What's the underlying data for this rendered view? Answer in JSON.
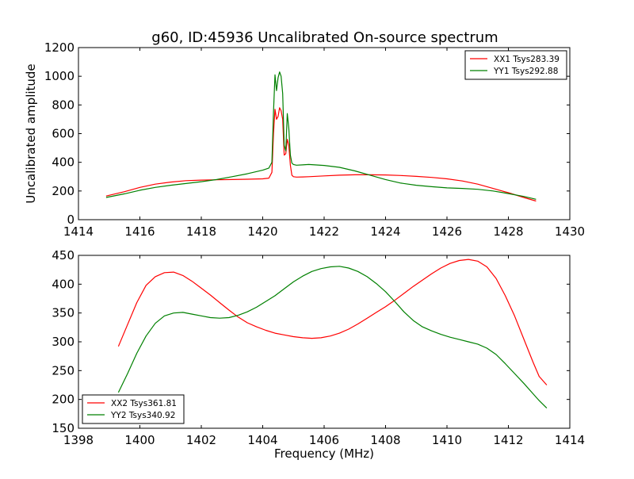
{
  "title": "g60, ID:45936 Uncalibrated On-source spectrum",
  "chart_data": [
    {
      "type": "line",
      "ylabel": "Uncalibrated amplitude",
      "xlabel": "",
      "xlim": [
        1414,
        1430
      ],
      "ylim": [
        0,
        1200
      ],
      "xticks": [
        1414,
        1416,
        1418,
        1420,
        1422,
        1424,
        1426,
        1428,
        1430
      ],
      "yticks": [
        0,
        200,
        400,
        600,
        800,
        1000,
        1200
      ],
      "legend_position": "top-right",
      "series": [
        {
          "name": "XX1 Tsys283.39",
          "color": "#ff0000",
          "x": [
            1414.9,
            1415.5,
            1416.0,
            1416.5,
            1417.0,
            1417.5,
            1418.0,
            1418.5,
            1419.0,
            1419.5,
            1420.0,
            1420.2,
            1420.3,
            1420.35,
            1420.4,
            1420.45,
            1420.5,
            1420.55,
            1420.6,
            1420.65,
            1420.7,
            1420.75,
            1420.8,
            1420.85,
            1420.9,
            1420.95,
            1421.0,
            1421.1,
            1421.3,
            1421.5,
            1422.0,
            1422.5,
            1423.0,
            1423.5,
            1424.0,
            1424.5,
            1425.0,
            1425.5,
            1426.0,
            1426.5,
            1427.0,
            1427.5,
            1428.0,
            1428.5,
            1428.9
          ],
          "y": [
            165,
            195,
            225,
            248,
            262,
            272,
            276,
            278,
            280,
            282,
            285,
            290,
            330,
            600,
            770,
            700,
            720,
            780,
            760,
            700,
            450,
            460,
            560,
            520,
            380,
            310,
            300,
            297,
            298,
            300,
            305,
            310,
            313,
            313,
            312,
            308,
            302,
            295,
            285,
            270,
            248,
            218,
            188,
            155,
            130
          ]
        },
        {
          "name": "YY1 Tsys292.88",
          "color": "#008000",
          "x": [
            1414.9,
            1415.5,
            1416.0,
            1416.5,
            1417.0,
            1417.5,
            1418.0,
            1418.5,
            1419.0,
            1419.5,
            1420.0,
            1420.2,
            1420.3,
            1420.35,
            1420.4,
            1420.45,
            1420.5,
            1420.55,
            1420.6,
            1420.65,
            1420.7,
            1420.75,
            1420.8,
            1420.85,
            1420.9,
            1420.95,
            1421.0,
            1421.1,
            1421.3,
            1421.5,
            1422.0,
            1422.5,
            1423.0,
            1423.5,
            1424.0,
            1424.5,
            1425.0,
            1425.5,
            1426.0,
            1426.5,
            1427.0,
            1427.5,
            1428.0,
            1428.5,
            1428.9
          ],
          "y": [
            155,
            180,
            205,
            225,
            240,
            252,
            265,
            280,
            300,
            320,
            345,
            360,
            400,
            750,
            1010,
            900,
            990,
            1030,
            1000,
            880,
            520,
            480,
            740,
            640,
            450,
            395,
            385,
            380,
            382,
            385,
            378,
            365,
            340,
            310,
            280,
            255,
            240,
            230,
            222,
            218,
            212,
            200,
            182,
            162,
            142
          ]
        }
      ]
    },
    {
      "type": "line",
      "ylabel": "",
      "xlabel": "Frequency (MHz)",
      "xlim": [
        1398,
        1414
      ],
      "ylim": [
        150,
        450
      ],
      "xticks": [
        1398,
        1400,
        1402,
        1404,
        1406,
        1408,
        1410,
        1412,
        1414
      ],
      "yticks": [
        150,
        200,
        250,
        300,
        350,
        400,
        450
      ],
      "legend_position": "bottom-left",
      "series": [
        {
          "name": "XX2 Tsys361.81",
          "color": "#ff0000",
          "x": [
            1399.3,
            1399.6,
            1399.9,
            1400.2,
            1400.5,
            1400.8,
            1401.1,
            1401.4,
            1401.7,
            1402.0,
            1402.3,
            1402.6,
            1402.9,
            1403.2,
            1403.5,
            1403.8,
            1404.1,
            1404.4,
            1404.7,
            1405.0,
            1405.3,
            1405.6,
            1405.9,
            1406.2,
            1406.5,
            1406.8,
            1407.1,
            1407.4,
            1407.7,
            1408.0,
            1408.3,
            1408.6,
            1408.9,
            1409.2,
            1409.5,
            1409.8,
            1410.1,
            1410.4,
            1410.7,
            1411.0,
            1411.3,
            1411.6,
            1411.9,
            1412.2,
            1412.5,
            1412.8,
            1413.0,
            1413.25
          ],
          "y": [
            292,
            330,
            368,
            398,
            413,
            420,
            421,
            415,
            405,
            393,
            381,
            368,
            355,
            343,
            333,
            326,
            320,
            315,
            312,
            309,
            307,
            306,
            307,
            310,
            315,
            322,
            331,
            341,
            351,
            361,
            372,
            384,
            396,
            407,
            418,
            428,
            436,
            441,
            443,
            440,
            430,
            410,
            380,
            345,
            305,
            265,
            240,
            225
          ]
        },
        {
          "name": "YY2 Tsys340.92",
          "color": "#008000",
          "x": [
            1399.3,
            1399.6,
            1399.9,
            1400.2,
            1400.5,
            1400.8,
            1401.1,
            1401.4,
            1401.7,
            1402.0,
            1402.3,
            1402.6,
            1402.9,
            1403.2,
            1403.5,
            1403.8,
            1404.1,
            1404.4,
            1404.7,
            1405.0,
            1405.3,
            1405.6,
            1405.9,
            1406.2,
            1406.5,
            1406.8,
            1407.1,
            1407.4,
            1407.7,
            1408.0,
            1408.3,
            1408.6,
            1408.9,
            1409.2,
            1409.5,
            1409.8,
            1410.1,
            1410.4,
            1410.7,
            1411.0,
            1411.3,
            1411.6,
            1411.9,
            1412.2,
            1412.5,
            1412.8,
            1413.0,
            1413.25
          ],
          "y": [
            212,
            245,
            280,
            310,
            332,
            345,
            350,
            351,
            348,
            345,
            342,
            341,
            342,
            346,
            352,
            360,
            370,
            380,
            392,
            404,
            414,
            422,
            427,
            430,
            431,
            428,
            422,
            413,
            401,
            387,
            370,
            352,
            337,
            326,
            319,
            313,
            308,
            304,
            300,
            296,
            289,
            278,
            262,
            245,
            228,
            210,
            198,
            185
          ]
        }
      ]
    }
  ]
}
